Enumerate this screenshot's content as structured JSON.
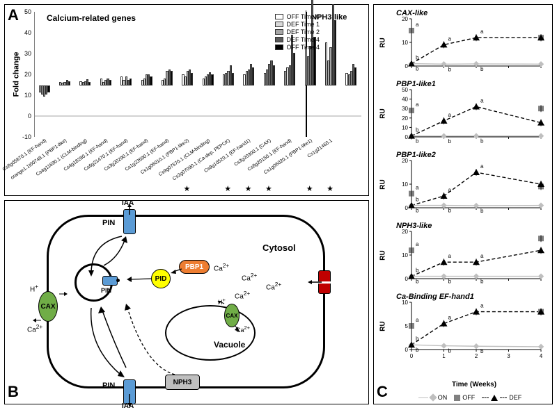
{
  "panelA": {
    "label": "A",
    "section1_title": "Calcium-related genes",
    "section2_title": "NPH3-like",
    "y_label": "Fold change",
    "ylim": [
      -10,
      50
    ],
    "ytick_step": 10,
    "yticks": [
      -10,
      0,
      10,
      20,
      30,
      40,
      50
    ],
    "legend": [
      {
        "label": "OFF Time 0",
        "color": "#ffffff"
      },
      {
        "label": "DEF Time 1",
        "color": "#d9d9d9"
      },
      {
        "label": "DEF Time 2",
        "color": "#a6a6a6"
      },
      {
        "label": "DEF Time 4",
        "color": "#595959"
      },
      {
        "label": "OFF Time 4",
        "color": "#000000"
      }
    ],
    "colors": [
      "#ffffff",
      "#d9d9d9",
      "#a6a6a6",
      "#595959",
      "#000000"
    ],
    "categories": [
      {
        "name": "Cs8g05870.1 (EF-hand)",
        "values": [
          -4,
          -5,
          -6,
          -5,
          -4
        ],
        "star": false
      },
      {
        "name": "orange1.1t00748.1 (PBP1-like)",
        "values": [
          2,
          1.5,
          2,
          3,
          2.5
        ],
        "star": false
      },
      {
        "name": "Cs4g11690.1 (CLM-binding)",
        "values": [
          2.5,
          2,
          2.5,
          3.5,
          2
        ],
        "star": false
      },
      {
        "name": "Cs4g18280.1 (EF-hand)",
        "values": [
          4,
          2,
          3,
          4,
          3
        ],
        "star": false
      },
      {
        "name": "Cs6g21470.1 (EF-hand)",
        "values": [
          5,
          3,
          5,
          3,
          4
        ],
        "star": false
      },
      {
        "name": "Cs3g20290.1 (EF-hand)",
        "values": [
          3,
          4,
          6,
          6,
          5
        ],
        "star": false
      },
      {
        "name": "Cs1g23590.1 (EF-hand)",
        "values": [
          3,
          4,
          8,
          9,
          8
        ],
        "star": false
      },
      {
        "name": "Cs1g06010.1 (PBP1-like2)",
        "values": [
          6,
          5,
          8,
          9,
          7
        ],
        "star": true
      },
      {
        "name": "Cs9g07570.1 (CLM-binding)",
        "values": [
          4,
          5,
          6,
          7.5,
          6
        ],
        "star": false
      },
      {
        "name": "Cs2g07090.1 (Ca-dep. PEPCK)",
        "values": [
          6,
          7,
          8,
          11,
          7
        ],
        "star": true
      },
      {
        "name": "Cs9g10520.1 (EF-hand1)",
        "values": [
          6,
          8,
          9,
          12,
          10
        ],
        "star": true
      },
      {
        "name": "Cs3g20300.1 (CAX)",
        "values": [
          7,
          9,
          12,
          14,
          11
        ],
        "star": true
      },
      {
        "name": "Cs8g20150.1 (EF-hand)",
        "values": [
          8,
          10,
          11,
          28,
          18
        ],
        "star": false
      },
      {
        "name": "Cs1g06020.1 (PBP1-like1)",
        "values": [
          21,
          16,
          22,
          50,
          27
        ],
        "star": true
      },
      {
        "name": "Cs1g21460.1",
        "values": [
          24,
          14,
          21,
          45,
          36
        ],
        "star": true
      },
      {
        "name": "",
        "values": [
          7,
          6,
          8,
          12,
          10
        ],
        "star": false
      }
    ],
    "section_split_index": 14,
    "label_fontsize": 7,
    "title_fontsize": 12
  },
  "panelB": {
    "label": "B",
    "nodes": {
      "cytosol_label": "Cytosol",
      "vacuole_label": "Vacuole",
      "pin_label": "PIN",
      "cax_label": "CAX",
      "pbp1_label": "PBP1",
      "pid_label": "PID",
      "nph3_label": "NPH3",
      "iaa_label": "IAA",
      "ca_label": "Ca",
      "h_label": "H"
    },
    "colors": {
      "pin": "#5b9bd5",
      "cax": "#70ad47",
      "channel": "#c00000",
      "pbp1": "#ed7d31",
      "pid": "#ffff00",
      "nph3": "#bfbfbf",
      "cell_border": "#000000"
    }
  },
  "panelC": {
    "label": "C",
    "x_label": "Time (Weeks)",
    "x_values": [
      0,
      1,
      2,
      3,
      4
    ],
    "legend": [
      {
        "label": "ON",
        "marker": "diamond",
        "color": "#bfbfbf"
      },
      {
        "label": "OFF",
        "marker": "square",
        "color": "#808080"
      },
      {
        "label": "DEF",
        "marker": "triangle",
        "color": "#000000"
      }
    ],
    "subplots": [
      {
        "title": "CAX-like",
        "ylabel": "RU",
        "ylim": [
          0,
          20
        ],
        "yticks": [
          0,
          10,
          20
        ],
        "series": {
          "ON": [
            1,
            0.8,
            0.9,
            null,
            0.8
          ],
          "OFF": [
            15,
            null,
            null,
            null,
            12
          ],
          "DEF": [
            1,
            9,
            12,
            null,
            12
          ]
        },
        "sig": {
          "ON": [
            "b",
            "b",
            "b",
            "",
            "b"
          ],
          "OFF": [
            "a",
            "",
            "",
            "",
            "a"
          ],
          "DEF": [
            "b",
            "a",
            "a",
            "",
            "a"
          ]
        }
      },
      {
        "title": "PBP1-like1",
        "ylabel": "RU",
        "ylim": [
          0,
          50
        ],
        "yticks": [
          0,
          10,
          20,
          30,
          40,
          50
        ],
        "series": {
          "ON": [
            1,
            0.9,
            1,
            null,
            1
          ],
          "OFF": [
            28,
            null,
            null,
            null,
            30
          ],
          "DEF": [
            1,
            17,
            32,
            null,
            15
          ]
        },
        "sig": {
          "ON": [
            "b",
            "b",
            "b",
            "",
            "c"
          ],
          "OFF": [
            "a",
            "",
            "",
            "",
            "a"
          ],
          "DEF": [
            "b",
            "a",
            "a",
            "",
            "b"
          ]
        }
      },
      {
        "title": "PBP1-like2",
        "ylabel": "RU",
        "ylim": [
          0,
          20
        ],
        "yticks": [
          0,
          10,
          20
        ],
        "series": {
          "ON": [
            1,
            1,
            0.9,
            null,
            1
          ],
          "OFF": [
            6,
            null,
            null,
            null,
            9
          ],
          "DEF": [
            1,
            5,
            15,
            null,
            10
          ]
        },
        "sig": {
          "ON": [
            "b",
            "b",
            "b",
            "",
            "b"
          ],
          "OFF": [
            "a",
            "",
            "",
            "",
            "a"
          ],
          "DEF": [
            "b",
            "a",
            "a",
            "",
            "a"
          ]
        }
      },
      {
        "title": "NPH3-like",
        "ylabel": "RU",
        "ylim": [
          0,
          20
        ],
        "yticks": [
          0,
          10,
          20
        ],
        "series": {
          "ON": [
            1,
            1,
            1,
            null,
            1
          ],
          "OFF": [
            12,
            null,
            null,
            null,
            17
          ],
          "DEF": [
            1,
            7,
            7,
            null,
            12
          ]
        },
        "sig": {
          "ON": [
            "b",
            "b",
            "b",
            "",
            "b"
          ],
          "OFF": [
            "a",
            "",
            "",
            "",
            "a"
          ],
          "DEF": [
            "b",
            "a",
            "a",
            "",
            "a"
          ]
        }
      },
      {
        "title": "Ca-Binding EF-hand1",
        "ylabel": "RU",
        "ylim": [
          0,
          10
        ],
        "yticks": [
          0,
          5,
          10
        ],
        "series": {
          "ON": [
            1,
            0.8,
            0.7,
            null,
            0.6
          ],
          "OFF": [
            5,
            null,
            null,
            null,
            8
          ],
          "DEF": [
            1,
            5.5,
            8,
            null,
            8
          ]
        },
        "sig": {
          "ON": [
            "b",
            "b",
            "b",
            "",
            "b"
          ],
          "OFF": [
            "a",
            "",
            "",
            "",
            "a"
          ],
          "DEF": [
            "b",
            "a",
            "a",
            "",
            "a"
          ]
        }
      }
    ]
  }
}
